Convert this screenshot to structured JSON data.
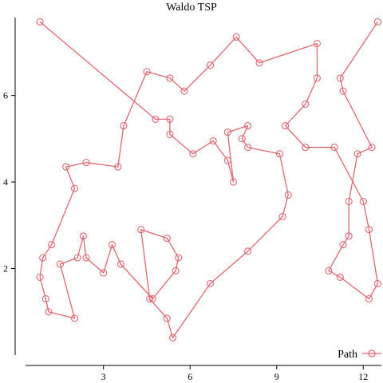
{
  "chart_data": {
    "type": "line",
    "title": "Waldo TSP",
    "xlabel": "",
    "ylabel": "",
    "xlim": [
      0.3,
      12.6
    ],
    "ylim": [
      0.0,
      7.8
    ],
    "xticks": [
      3,
      6,
      9,
      12
    ],
    "yticks": [
      2,
      4,
      6
    ],
    "grid": false,
    "legend": {
      "position": "bottom-right",
      "entries": [
        "Path"
      ]
    },
    "line_color": "#e06670",
    "series": [
      {
        "name": "Path",
        "marker": "circle",
        "x": [
          0.8,
          4.8,
          5.3,
          5.3,
          6.1,
          6.8,
          7.3,
          7.5,
          7.3,
          8.0,
          7.8,
          8.0,
          9.1,
          9.4,
          9.2,
          8.0,
          6.7,
          5.4,
          5.2,
          4.6,
          4.3,
          5.2,
          5.6,
          5.5,
          4.7,
          3.6,
          3.3,
          3.0,
          2.4,
          2.3,
          2.1,
          1.5,
          2.0,
          1.1,
          1.0,
          0.8,
          0.9,
          1.2,
          2.0,
          1.7,
          2.4,
          3.5,
          3.7,
          4.5,
          5.3,
          5.8,
          6.7,
          7.6,
          8.4,
          10.4,
          10.4,
          10.0,
          9.3,
          10.0,
          11.0,
          12.0,
          12.2,
          12.5,
          12.2,
          11.2,
          10.8,
          11.3,
          11.5,
          11.5,
          11.8,
          12.3,
          11.3,
          11.2,
          12.5
        ],
        "y": [
          7.7,
          5.45,
          5.45,
          5.1,
          4.65,
          4.95,
          4.5,
          4.0,
          5.15,
          5.3,
          5.0,
          4.8,
          4.65,
          3.7,
          3.2,
          2.4,
          1.65,
          0.4,
          0.85,
          1.3,
          2.9,
          2.7,
          2.25,
          1.95,
          1.3,
          2.1,
          2.55,
          1.9,
          2.25,
          2.75,
          2.25,
          2.1,
          0.85,
          1.0,
          1.3,
          1.8,
          2.25,
          2.55,
          3.85,
          4.35,
          4.45,
          4.35,
          5.3,
          6.55,
          6.4,
          6.1,
          6.7,
          7.35,
          6.75,
          7.2,
          6.4,
          5.8,
          5.3,
          4.8,
          4.8,
          3.55,
          2.9,
          1.65,
          1.3,
          1.8,
          1.95,
          2.55,
          2.75,
          3.55,
          4.65,
          4.8,
          6.1,
          6.4,
          7.7
        ]
      }
    ]
  }
}
